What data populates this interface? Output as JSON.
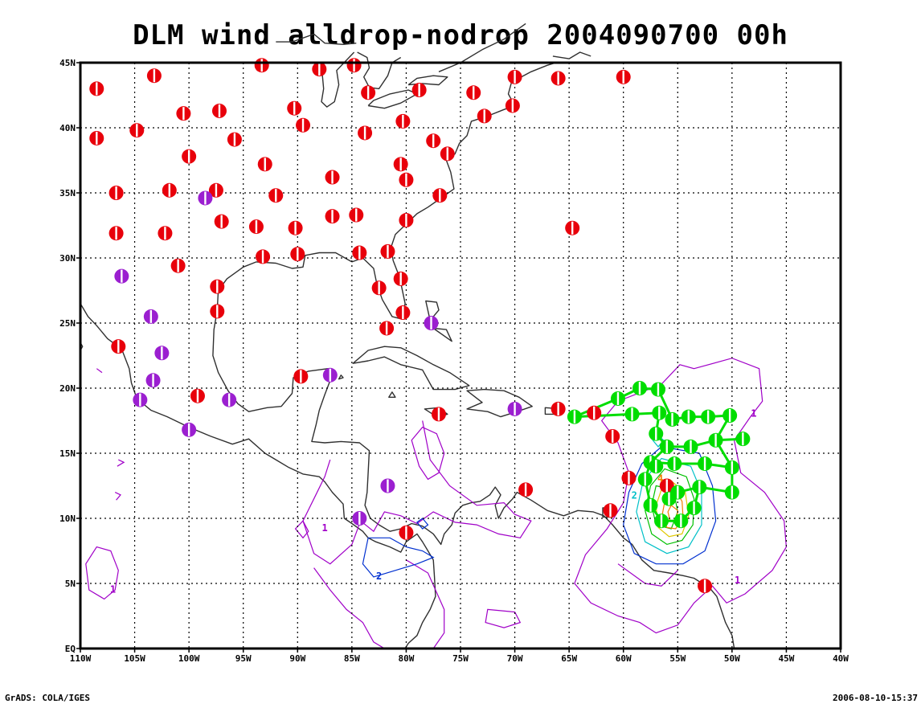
{
  "title": "DLM wind alldrop-nodrop 2004090700 00h",
  "footer": {
    "left": "GrADS: COLA/IGES",
    "right": "2006-08-10-15:37"
  },
  "lon_ticks": [
    "110W",
    "105W",
    "100W",
    "95W",
    "90W",
    "85W",
    "80W",
    "75W",
    "70W",
    "65W",
    "60W",
    "55W",
    "50W",
    "45W",
    "40W"
  ],
  "lat_ticks": [
    "EQ",
    "5N",
    "10N",
    "15N",
    "20N",
    "25N",
    "30N",
    "35N",
    "40N",
    "45N"
  ],
  "extent": {
    "lon": [
      -110,
      -40
    ],
    "lat": [
      0,
      45
    ]
  },
  "colors": {
    "station_red": "#e8000b",
    "station_purple": "#9b1fd0",
    "drop_green": "#00dd00",
    "contour_purple": "#a000c8",
    "contour_blue": "#0030d0",
    "contour_cyan": "#00c0c8",
    "contour_green": "#00c000",
    "contour_yellow": "#e0c800",
    "contour_orange": "#f08000",
    "coast": "#303030"
  },
  "red_stations": [
    [
      -108.5,
      43.0
    ],
    [
      -108.5,
      39.2
    ],
    [
      -104.8,
      39.8
    ],
    [
      -103.2,
      44.0
    ],
    [
      -100.5,
      41.1
    ],
    [
      -100.0,
      37.8
    ],
    [
      -97.2,
      41.3
    ],
    [
      -95.8,
      39.1
    ],
    [
      -93.3,
      44.8
    ],
    [
      -93.0,
      37.2
    ],
    [
      -90.3,
      41.5
    ],
    [
      -89.5,
      40.2
    ],
    [
      -88.0,
      44.5
    ],
    [
      -84.8,
      44.8
    ],
    [
      -83.8,
      39.6
    ],
    [
      -83.5,
      42.7
    ],
    [
      -80.3,
      40.5
    ],
    [
      -78.8,
      42.9
    ],
    [
      -77.5,
      39.0
    ],
    [
      -76.2,
      38.0
    ],
    [
      -73.8,
      42.7
    ],
    [
      -72.8,
      40.9
    ],
    [
      -70.2,
      41.7
    ],
    [
      -70.0,
      43.9
    ],
    [
      -66.0,
      43.8
    ],
    [
      -60.0,
      43.9
    ],
    [
      -106.7,
      35.0
    ],
    [
      -101.8,
      35.2
    ],
    [
      -97.5,
      35.2
    ],
    [
      -92.0,
      34.8
    ],
    [
      -86.8,
      36.2
    ],
    [
      -80.5,
      37.2
    ],
    [
      -80.0,
      36.0
    ],
    [
      -76.9,
      34.8
    ],
    [
      -106.7,
      31.9
    ],
    [
      -102.2,
      31.9
    ],
    [
      -97.0,
      32.8
    ],
    [
      -93.8,
      32.4
    ],
    [
      -90.2,
      32.3
    ],
    [
      -86.8,
      33.2
    ],
    [
      -84.6,
      33.3
    ],
    [
      -80.0,
      32.9
    ],
    [
      -64.7,
      32.3
    ],
    [
      -101.0,
      29.4
    ],
    [
      -93.2,
      30.1
    ],
    [
      -90.0,
      30.3
    ],
    [
      -84.3,
      30.4
    ],
    [
      -81.7,
      30.5
    ],
    [
      -97.4,
      27.8
    ],
    [
      -82.5,
      27.7
    ],
    [
      -80.5,
      28.4
    ],
    [
      -97.4,
      25.9
    ],
    [
      -80.3,
      25.8
    ],
    [
      -81.8,
      24.6
    ],
    [
      -106.5,
      23.2
    ],
    [
      -89.7,
      20.9
    ],
    [
      -99.2,
      19.4
    ],
    [
      -77.0,
      18.0
    ],
    [
      -66.0,
      18.4
    ],
    [
      -62.7,
      18.1
    ],
    [
      -61.0,
      16.3
    ],
    [
      -59.5,
      13.1
    ],
    [
      -69.0,
      12.2
    ],
    [
      -61.2,
      10.6
    ],
    [
      -80.0,
      8.9
    ],
    [
      -52.5,
      4.8
    ],
    [
      -56.0,
      12.5
    ]
  ],
  "purple_stations": [
    [
      -98.5,
      34.6
    ],
    [
      -106.2,
      28.6
    ],
    [
      -103.5,
      25.5
    ],
    [
      -102.5,
      22.7
    ],
    [
      -103.3,
      20.6
    ],
    [
      -104.5,
      19.1
    ],
    [
      -96.3,
      19.1
    ],
    [
      -100.0,
      16.8
    ],
    [
      -87.0,
      21.0
    ],
    [
      -77.7,
      25.0
    ],
    [
      -70.0,
      18.4
    ],
    [
      -81.7,
      12.5
    ],
    [
      -84.3,
      10.0
    ]
  ],
  "drop_points": [
    [
      -64.5,
      17.8
    ],
    [
      -60.5,
      19.2
    ],
    [
      -58.5,
      20.0
    ],
    [
      -56.8,
      19.9
    ],
    [
      -59.2,
      18.0
    ],
    [
      -56.7,
      18.1
    ],
    [
      -55.5,
      17.6
    ],
    [
      -54.0,
      17.8
    ],
    [
      -52.2,
      17.8
    ],
    [
      -50.2,
      17.9
    ],
    [
      -57.0,
      16.5
    ],
    [
      -56.0,
      15.5
    ],
    [
      -53.8,
      15.5
    ],
    [
      -51.5,
      16.0
    ],
    [
      -49.0,
      16.1
    ],
    [
      -57.5,
      14.3
    ],
    [
      -55.3,
      14.2
    ],
    [
      -52.5,
      14.2
    ],
    [
      -50.0,
      13.9
    ],
    [
      -58.0,
      13.0
    ],
    [
      -55.0,
      12.0
    ],
    [
      -53.0,
      12.4
    ],
    [
      -50.0,
      12.0
    ],
    [
      -57.5,
      11.0
    ],
    [
      -55.8,
      11.5
    ],
    [
      -53.5,
      10.8
    ],
    [
      -56.5,
      9.8
    ],
    [
      -54.7,
      9.8
    ],
    [
      -57.0,
      14.0
    ]
  ],
  "drop_tracks": [
    [
      [
        -64.5,
        17.8
      ],
      [
        -60.5,
        19.2
      ],
      [
        -58.5,
        20.0
      ],
      [
        -56.8,
        19.9
      ],
      [
        -55.5,
        17.6
      ],
      [
        -54.0,
        17.8
      ],
      [
        -52.2,
        17.8
      ],
      [
        -50.2,
        17.9
      ]
    ],
    [
      [
        -64.5,
        17.8
      ],
      [
        -59.2,
        18.0
      ],
      [
        -56.7,
        18.1
      ],
      [
        -57.0,
        16.5
      ],
      [
        -56.0,
        15.5
      ],
      [
        -53.8,
        15.5
      ],
      [
        -51.5,
        16.0
      ],
      [
        -49.0,
        16.1
      ]
    ],
    [
      [
        -50.2,
        17.9
      ],
      [
        -51.5,
        16.0
      ],
      [
        -50.0,
        13.9
      ],
      [
        -50.0,
        12.0
      ],
      [
        -53.0,
        12.4
      ],
      [
        -53.5,
        10.8
      ],
      [
        -54.7,
        9.8
      ],
      [
        -56.5,
        9.8
      ],
      [
        -57.5,
        11.0
      ],
      [
        -58.0,
        13.0
      ],
      [
        -57.5,
        14.3
      ],
      [
        -56.0,
        15.5
      ]
    ],
    [
      [
        -57.5,
        14.3
      ],
      [
        -55.3,
        14.2
      ],
      [
        -52.5,
        14.2
      ],
      [
        -50.0,
        13.9
      ]
    ],
    [
      [
        -55.8,
        11.5
      ],
      [
        -55.0,
        12.0
      ],
      [
        -53.0,
        12.4
      ]
    ]
  ],
  "contour_labels": [
    {
      "text": "1",
      "lon": -48.0,
      "lat": 17.8,
      "color": "contour_purple"
    },
    {
      "text": "1",
      "lon": -49.5,
      "lat": 5.0,
      "color": "contour_purple"
    },
    {
      "text": "1",
      "lon": -87.5,
      "lat": 9.0,
      "color": "contour_purple"
    },
    {
      "text": "2",
      "lon": -82.5,
      "lat": 5.3,
      "color": "contour_blue"
    },
    {
      "text": "1",
      "lon": -107.0,
      "lat": 4.3,
      "color": "contour_purple"
    },
    {
      "text": "4",
      "lon": -56.6,
      "lat": 12.8,
      "color": "contour_orange"
    },
    {
      "text": "2",
      "lon": -59.0,
      "lat": 11.5,
      "color": "contour_cyan"
    }
  ]
}
